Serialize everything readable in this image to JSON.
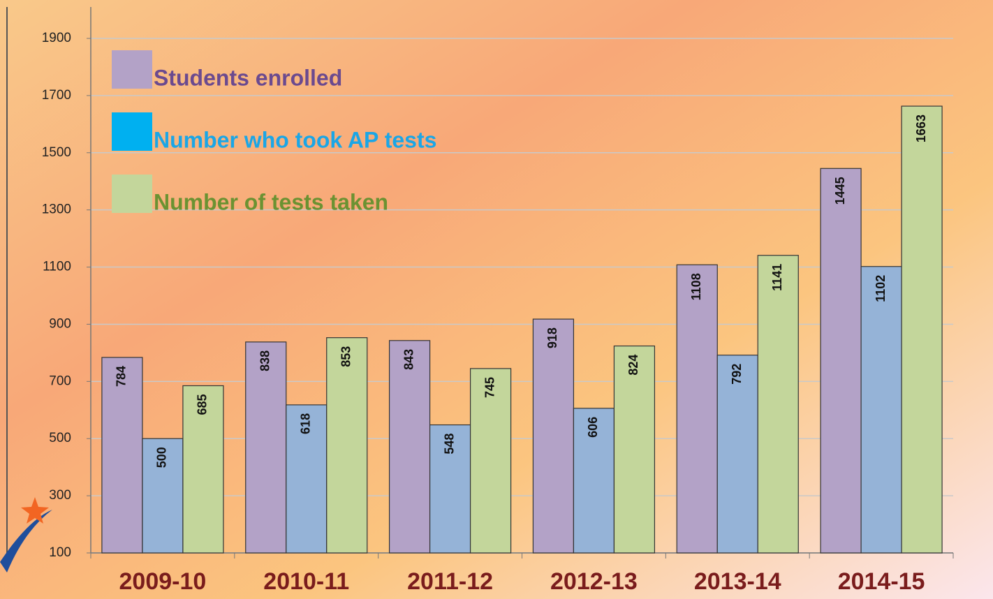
{
  "chart_data": {
    "type": "bar",
    "categories": [
      "2009-10",
      "2010-11",
      "2011-12",
      "2012-13",
      "2013-14",
      "2014-15"
    ],
    "series": [
      {
        "name": "Students enrolled",
        "color": "#b3a2c7",
        "legend_color": "#b3a2c7",
        "label_color": "#6b4a8f",
        "values": [
          784,
          838,
          843,
          918,
          1108,
          1445
        ]
      },
      {
        "name": "Number who took AP tests",
        "color": "#95b3d7",
        "legend_color": "#00b0f0",
        "label_color": "#1ba6e6",
        "values": [
          500,
          618,
          548,
          606,
          792,
          1102
        ]
      },
      {
        "name": "Number of tests taken",
        "color": "#c3d69b",
        "legend_color": "#c3d69b",
        "label_color": "#6b9232",
        "values": [
          685,
          853,
          745,
          824,
          1141,
          1663
        ]
      }
    ],
    "ylim": [
      100,
      1900
    ],
    "yticks": [
      100,
      300,
      500,
      700,
      900,
      1100,
      1300,
      1500,
      1700,
      1900
    ],
    "grid": true,
    "legend": "upper left"
  }
}
